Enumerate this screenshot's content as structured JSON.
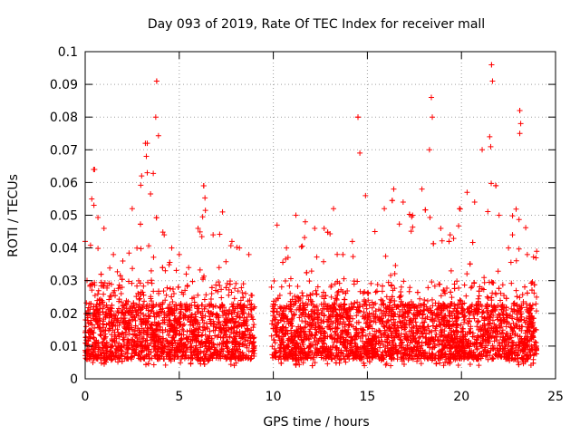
{
  "chart_data": {
    "type": "scatter",
    "title": "Day 093 of 2019, Rate Of TEC Index for receiver mall",
    "xlabel": "GPS time / hours",
    "ylabel": "ROTI / TECUs",
    "xlim": [
      0,
      25
    ],
    "ylim": [
      0,
      0.1
    ],
    "xticks": [
      0,
      5,
      10,
      15,
      20,
      25
    ],
    "xtick_labels": [
      "0",
      "5",
      "10",
      "15",
      "20",
      "25"
    ],
    "yticks": [
      0,
      0.01,
      0.02,
      0.03,
      0.04,
      0.05,
      0.06,
      0.07,
      0.08,
      0.09,
      0.1
    ],
    "ytick_labels": [
      "0",
      "0.01",
      "0.02",
      "0.03",
      "0.04",
      "0.05",
      "0.06",
      "0.07",
      "0.08",
      "0.09",
      "0.1"
    ],
    "grid": true,
    "marker": "+",
    "marker_color": "#ff0000",
    "data_gap_hours": [
      9.0,
      9.9
    ],
    "series": [
      {
        "name": "ROTI",
        "notable_points": [
          [
            0.45,
            0.064
          ],
          [
            0.35,
            0.055
          ],
          [
            3.2,
            0.072
          ],
          [
            3.25,
            0.068
          ],
          [
            3.3,
            0.063
          ],
          [
            3.8,
            0.091
          ],
          [
            3.75,
            0.08
          ],
          [
            6.3,
            0.059
          ],
          [
            14.5,
            0.08
          ],
          [
            14.6,
            0.069
          ],
          [
            18.4,
            0.086
          ],
          [
            18.45,
            0.08
          ],
          [
            21.6,
            0.096
          ],
          [
            21.65,
            0.091
          ],
          [
            23.1,
            0.082
          ],
          [
            23.15,
            0.078
          ],
          [
            23.1,
            0.075
          ],
          [
            21.5,
            0.074
          ],
          [
            18.3,
            0.07
          ]
        ],
        "envelope": [
          [
            0.0,
            0.042
          ],
          [
            0.5,
            0.064
          ],
          [
            1.0,
            0.046
          ],
          [
            1.5,
            0.038
          ],
          [
            2.0,
            0.036
          ],
          [
            2.5,
            0.052
          ],
          [
            3.0,
            0.062
          ],
          [
            3.3,
            0.072
          ],
          [
            3.8,
            0.091
          ],
          [
            4.2,
            0.044
          ],
          [
            4.6,
            0.04
          ],
          [
            5.0,
            0.038
          ],
          [
            5.5,
            0.034
          ],
          [
            6.0,
            0.046
          ],
          [
            6.3,
            0.059
          ],
          [
            6.8,
            0.044
          ],
          [
            7.3,
            0.051
          ],
          [
            7.8,
            0.042
          ],
          [
            8.2,
            0.04
          ],
          [
            8.7,
            0.038
          ],
          [
            9.0,
            0.022
          ],
          [
            9.9,
            0.028
          ],
          [
            10.2,
            0.047
          ],
          [
            10.7,
            0.04
          ],
          [
            11.2,
            0.05
          ],
          [
            11.7,
            0.048
          ],
          [
            12.2,
            0.046
          ],
          [
            12.7,
            0.046
          ],
          [
            13.2,
            0.052
          ],
          [
            13.7,
            0.038
          ],
          [
            14.2,
            0.042
          ],
          [
            14.5,
            0.08
          ],
          [
            14.9,
            0.056
          ],
          [
            15.4,
            0.045
          ],
          [
            15.9,
            0.052
          ],
          [
            16.4,
            0.058
          ],
          [
            16.9,
            0.054
          ],
          [
            17.4,
            0.05
          ],
          [
            17.9,
            0.058
          ],
          [
            18.4,
            0.086
          ],
          [
            18.9,
            0.046
          ],
          [
            19.4,
            0.044
          ],
          [
            19.9,
            0.052
          ],
          [
            20.3,
            0.057
          ],
          [
            20.7,
            0.054
          ],
          [
            21.1,
            0.07
          ],
          [
            21.6,
            0.096
          ],
          [
            22.0,
            0.05
          ],
          [
            22.5,
            0.04
          ],
          [
            23.1,
            0.082
          ],
          [
            23.5,
            0.038
          ],
          [
            24.0,
            0.039
          ]
        ]
      }
    ]
  }
}
